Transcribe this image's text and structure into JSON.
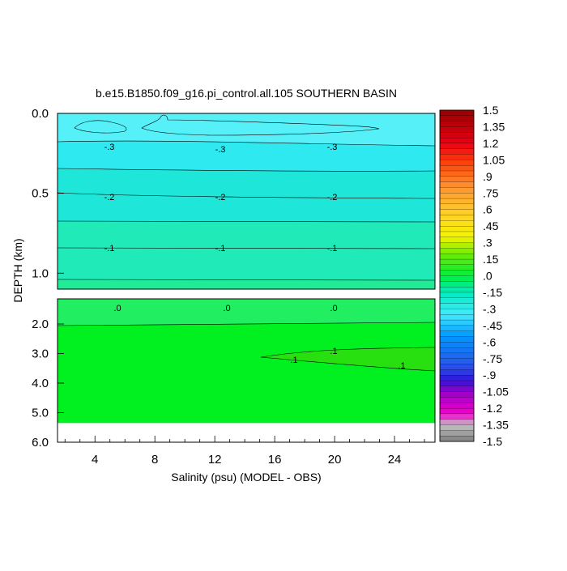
{
  "chart_data": {
    "type": "heatmap",
    "title": "b.e15.B1850.f09_g16.pi_control.all.105 SOUTHERN BASIN",
    "xlabel": "Salinity (psu) (MODEL - OBS)",
    "ylabel": "DEPTH (km)",
    "xlim": [
      1.5,
      26.7
    ],
    "x_ticks": [
      "4",
      "8",
      "12",
      "16",
      "20",
      "24"
    ],
    "y_ticks_upper": [
      "0.0",
      "0.5",
      "1.0"
    ],
    "y_ticks_lower": [
      "2.0",
      "3.0",
      "4.0",
      "5.0",
      "6.0"
    ],
    "ylim_upper": [
      0.0,
      1.1
    ],
    "ylim_lower": [
      1.1,
      6.0
    ],
    "data_bottom_depth": 5.35,
    "contour_levels": [
      {
        "label": "-.3",
        "depth": 0.2
      },
      {
        "label": "-.2",
        "depth": 0.5
      },
      {
        "label": "-.1",
        "depth": 0.85
      },
      {
        "label": ".0",
        "depth": 1.25
      },
      {
        "label": ".1",
        "depth": 3.0
      }
    ],
    "colorbar": {
      "labels": [
        "1.5",
        "1.35",
        "1.2",
        "1.05",
        ".9",
        ".75",
        ".6",
        ".45",
        ".3",
        ".15",
        ".0",
        "-.15",
        "-.3",
        "-.45",
        "-.6",
        "-.75",
        "-.9",
        "-1.05",
        "-1.2",
        "-1.35",
        "-1.5"
      ],
      "min": -1.5,
      "max": 1.5,
      "step": 0.05
    },
    "colors": {
      "upper_surface": "#55f0f8",
      "band_neg03": "#2eeaf0",
      "band_neg02": "#1ee6d8",
      "band_neg01": "#20eab8",
      "band_00": "#22ee62",
      "band_deep": "#00f020",
      "band_01": "#28e010"
    }
  }
}
